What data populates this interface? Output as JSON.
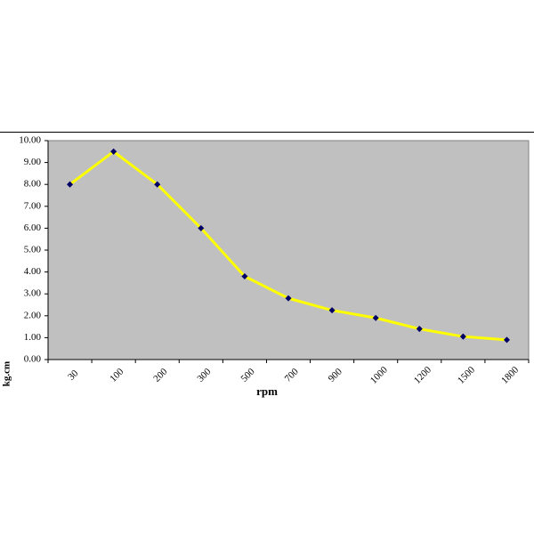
{
  "chart_data": {
    "type": "line",
    "x_label": "rpm",
    "y_label": "kg.cm",
    "categories": [
      "30",
      "100",
      "200",
      "300",
      "500",
      "700",
      "900",
      "1000",
      "1200",
      "1500",
      "1800"
    ],
    "values": [
      8.0,
      9.5,
      8.0,
      6.0,
      3.8,
      2.8,
      2.25,
      1.9,
      1.4,
      1.05,
      0.9
    ],
    "color": "#ffff00",
    "marker_color": "#000066",
    "plot_background": "#c0c0c0",
    "ylim": [
      0,
      10
    ],
    "yticks": [
      {
        "value": 0,
        "label": "0.00"
      },
      {
        "value": 1,
        "label": "1.00"
      },
      {
        "value": 2,
        "label": "2.00"
      },
      {
        "value": 3,
        "label": "3.00"
      },
      {
        "value": 4,
        "label": "4.00"
      },
      {
        "value": 5,
        "label": "5.00"
      },
      {
        "value": 6,
        "label": "6.00"
      },
      {
        "value": 7,
        "label": "7.00"
      },
      {
        "value": 8,
        "label": "8.00"
      },
      {
        "value": 9,
        "label": "9.00"
      },
      {
        "value": 10,
        "label": "10.00"
      }
    ],
    "grid": false
  }
}
